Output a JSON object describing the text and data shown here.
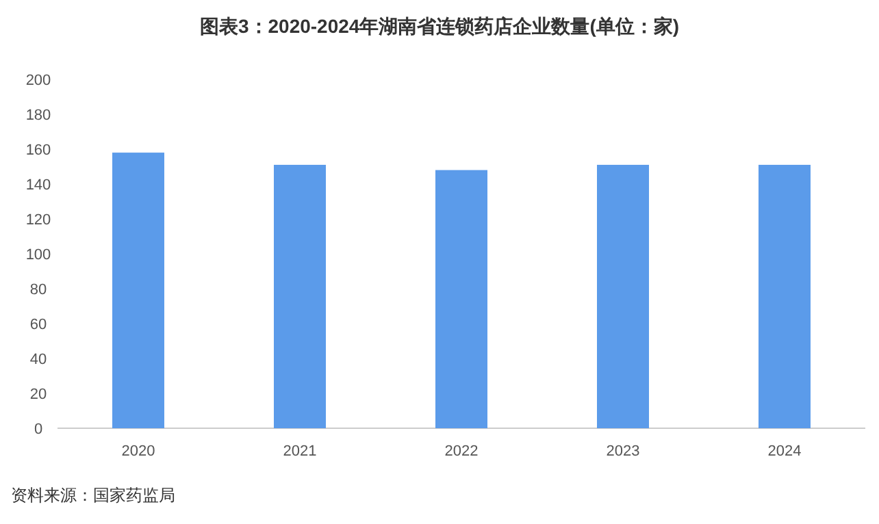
{
  "chart_data": {
    "type": "bar",
    "title": "图表3：2020-2024年湖南省连锁药店企业数量(单位：家)",
    "categories": [
      "2020",
      "2021",
      "2022",
      "2023",
      "2024"
    ],
    "values": [
      158,
      151,
      148,
      151,
      151
    ],
    "color": "#5b9bea",
    "ylim": [
      0,
      200
    ],
    "yticks": [
      0,
      20,
      40,
      60,
      80,
      100,
      120,
      140,
      160,
      180,
      200
    ],
    "grid": false,
    "annotations": [
      "资料来源：国家药监局"
    ]
  }
}
